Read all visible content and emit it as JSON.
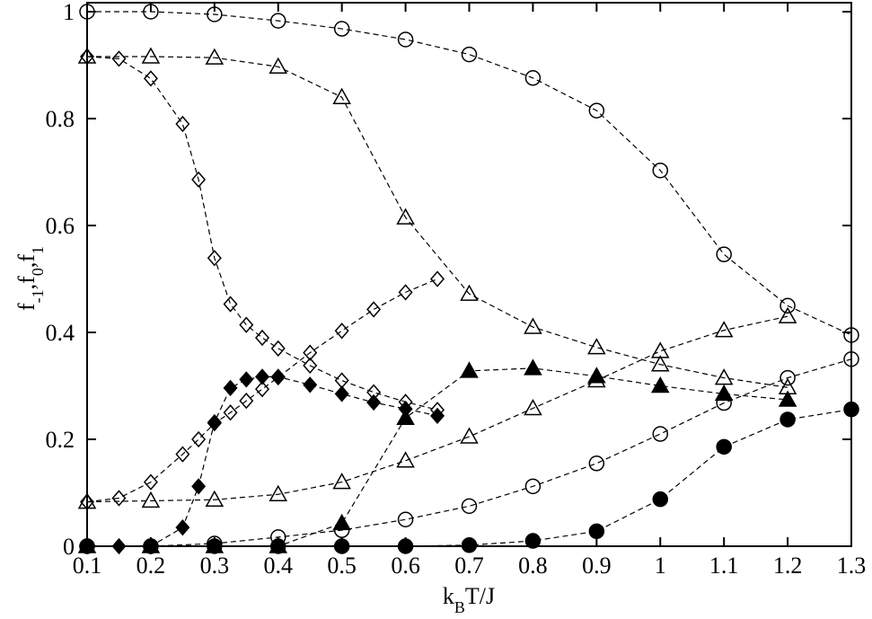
{
  "chart_data": {
    "type": "scatter-line",
    "xlabel": [
      "k",
      "B",
      "T/J"
    ],
    "ylabel": [
      "f",
      "-1",
      ",f",
      "0",
      ",f",
      "1"
    ],
    "xlim": [
      0.1,
      1.3
    ],
    "ylim": [
      0,
      1
    ],
    "xticks": [
      0.1,
      0.2,
      0.3,
      0.4,
      0.5,
      0.6,
      0.7,
      0.8,
      0.9,
      1,
      1.1,
      1.2,
      1.3
    ],
    "yticks": [
      0,
      0.2,
      0.4,
      0.6,
      0.8,
      1
    ],
    "line_style": "dashed",
    "color": "#000000",
    "series": [
      {
        "marker": "circle",
        "filled": false,
        "x": [
          0.1,
          0.2,
          0.3,
          0.4,
          0.5,
          0.6,
          0.7,
          0.8,
          0.9,
          1,
          1.1,
          1.2,
          1.3
        ],
        "values": [
          1.0,
          1.0,
          0.995,
          0.983,
          0.968,
          0.948,
          0.92,
          0.876,
          0.815,
          0.703,
          0.546,
          0.45,
          0.395
        ]
      },
      {
        "marker": "triangle",
        "filled": false,
        "x": [
          0.1,
          0.2,
          0.3,
          0.4,
          0.5,
          0.6,
          0.7,
          0.8,
          0.9,
          1,
          1.1,
          1.2
        ],
        "values": [
          0.916,
          0.916,
          0.914,
          0.897,
          0.84,
          0.615,
          0.472,
          0.41,
          0.372,
          0.34,
          0.315,
          0.297
        ]
      },
      {
        "marker": "diamond",
        "filled": false,
        "x": [
          0.1,
          0.15,
          0.2,
          0.25,
          0.275,
          0.3,
          0.325,
          0.35,
          0.375,
          0.4,
          0.45,
          0.5,
          0.55,
          0.6,
          0.65
        ],
        "values": [
          0.916,
          0.912,
          0.875,
          0.79,
          0.686,
          0.539,
          0.453,
          0.414,
          0.39,
          0.37,
          0.338,
          0.31,
          0.288,
          0.27,
          0.255
        ]
      },
      {
        "marker": "diamond",
        "filled": false,
        "x": [
          0.1,
          0.15,
          0.2,
          0.25,
          0.275,
          0.3,
          0.325,
          0.35,
          0.375,
          0.4,
          0.45,
          0.5,
          0.55,
          0.6,
          0.65
        ],
        "values": [
          0.083,
          0.09,
          0.12,
          0.172,
          0.2,
          0.23,
          0.25,
          0.272,
          0.294,
          0.316,
          0.362,
          0.403,
          0.443,
          0.475,
          0.5
        ]
      },
      {
        "marker": "diamond",
        "filled": true,
        "x": [
          0.1,
          0.15,
          0.2,
          0.25,
          0.275,
          0.3,
          0.325,
          0.35,
          0.375,
          0.4,
          0.45,
          0.5,
          0.55,
          0.6,
          0.65
        ],
        "values": [
          0,
          0,
          0,
          0.035,
          0.112,
          0.232,
          0.296,
          0.312,
          0.317,
          0.317,
          0.302,
          0.285,
          0.269,
          0.257,
          0.244
        ]
      },
      {
        "marker": "triangle",
        "filled": false,
        "x": [
          0.1,
          0.2,
          0.3,
          0.4,
          0.5,
          0.6,
          0.7,
          0.8,
          0.9,
          1,
          1.1,
          1.2
        ],
        "values": [
          0.083,
          0.085,
          0.087,
          0.097,
          0.12,
          0.16,
          0.205,
          0.258,
          0.31,
          0.365,
          0.404,
          0.43
        ]
      },
      {
        "marker": "triangle",
        "filled": true,
        "x": [
          0.1,
          0.2,
          0.3,
          0.4,
          0.5,
          0.6,
          0.7,
          0.8,
          0.9,
          1,
          1.1,
          1.2
        ],
        "values": [
          0,
          0,
          0,
          0,
          0.043,
          0.24,
          0.328,
          0.333,
          0.318,
          0.3,
          0.285,
          0.274
        ]
      },
      {
        "marker": "circle",
        "filled": false,
        "x": [
          0.1,
          0.2,
          0.3,
          0.4,
          0.5,
          0.6,
          0.7,
          0.8,
          0.9,
          1,
          1.1,
          1.2,
          1.3
        ],
        "values": [
          0,
          0,
          0.005,
          0.017,
          0.03,
          0.05,
          0.075,
          0.112,
          0.155,
          0.21,
          0.268,
          0.315,
          0.35
        ]
      },
      {
        "marker": "circle",
        "filled": true,
        "x": [
          0.1,
          0.2,
          0.3,
          0.4,
          0.5,
          0.6,
          0.7,
          0.8,
          0.9,
          1,
          1.1,
          1.2,
          1.3
        ],
        "values": [
          0,
          0,
          0,
          0,
          0,
          0,
          0.002,
          0.01,
          0.028,
          0.088,
          0.186,
          0.237,
          0.256
        ]
      }
    ]
  }
}
